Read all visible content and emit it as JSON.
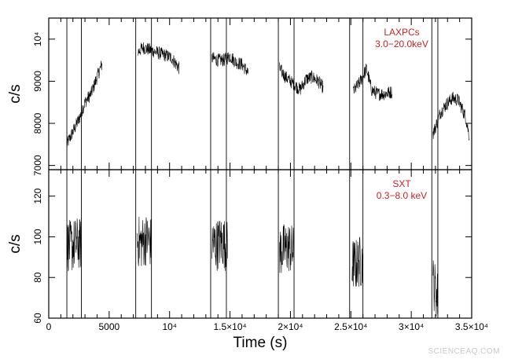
{
  "chart_data": {
    "type": "line",
    "xlabel": "Time (s)",
    "xlim": [
      0,
      35000
    ],
    "x_ticks": [
      {
        "value": 0,
        "label": "0"
      },
      {
        "value": 5000,
        "label": "5000"
      },
      {
        "value": 10000,
        "label": "10⁴"
      },
      {
        "value": 15000,
        "label": "1.5×10⁴"
      },
      {
        "value": 20000,
        "label": "2×10⁴"
      },
      {
        "value": 25000,
        "label": "2.5×10⁴"
      },
      {
        "value": 30000,
        "label": "3×10⁴"
      },
      {
        "value": 35000,
        "label": "3.5×10⁴"
      }
    ],
    "panels": [
      {
        "name": "LAXPC",
        "label_lines": [
          "LAXPCs",
          "3.0−20.0keV"
        ],
        "ylabel": "c/s",
        "ylim": [
          6900,
          10500
        ],
        "y_ticks": [
          {
            "value": 7000,
            "label": "7000"
          },
          {
            "value": 8000,
            "label": "8000"
          },
          {
            "value": 9000,
            "label": "9000"
          },
          {
            "value": 10000,
            "label": "10⁴"
          }
        ],
        "segments": [
          {
            "x": [
              1500,
              2000,
              2500,
              3000,
              3500,
              4000,
              4400
            ],
            "y": [
              7500,
              7800,
              8100,
              8500,
              8700,
              9100,
              9400
            ]
          },
          {
            "x": [
              7400,
              7800,
              8300,
              8800,
              9300,
              9800,
              10200,
              10800
            ],
            "y": [
              9700,
              9800,
              9750,
              9700,
              9650,
              9600,
              9550,
              9300
            ]
          },
          {
            "x": [
              13500,
              14000,
              14500,
              15000,
              15500,
              16000,
              16500
            ],
            "y": [
              9550,
              9500,
              9500,
              9600,
              9450,
              9400,
              9200
            ]
          },
          {
            "x": [
              19100,
              19600,
              20200,
              20800,
              21300,
              21800,
              22300,
              22700
            ],
            "y": [
              9300,
              9100,
              8950,
              8800,
              9050,
              9100,
              9000,
              8850
            ]
          },
          {
            "x": [
              25200,
              25800,
              26300,
              26700,
              27200,
              27800,
              28400
            ],
            "y": [
              8750,
              9000,
              9300,
              8800,
              8700,
              8700,
              8750
            ]
          },
          {
            "x": [
              31800,
              32400,
              32900,
              33400,
              33900,
              34500,
              34800
            ],
            "y": [
              7750,
              8250,
              8450,
              8600,
              8550,
              8150,
              7700
            ]
          }
        ],
        "noise_amplitude": 160
      },
      {
        "name": "SXT",
        "label_lines": [
          "SXT",
          "0.3−8.0 keV"
        ],
        "ylabel": "c/s",
        "ylim": [
          60,
          133
        ],
        "y_ticks": [
          {
            "value": 60,
            "label": "60"
          },
          {
            "value": 80,
            "label": "80"
          },
          {
            "value": 100,
            "label": "100"
          },
          {
            "value": 120,
            "label": "120"
          }
        ],
        "segments": [
          {
            "x": [
              1500,
              1900,
              2300,
              2700
            ],
            "y": [
              96,
              95,
              97,
              96
            ]
          },
          {
            "x": [
              7300,
              7700,
              8100,
              8500
            ],
            "y": [
              98,
              97,
              99,
              97
            ]
          },
          {
            "x": [
              13500,
              13900,
              14300,
              14800
            ],
            "y": [
              97,
              96,
              98,
              95
            ]
          },
          {
            "x": [
              19100,
              19500,
              19900,
              20300
            ],
            "y": [
              93,
              94,
              95,
              92
            ]
          },
          {
            "x": [
              25100,
              25400,
              25700,
              26000
            ],
            "y": [
              87,
              86,
              88,
              87
            ]
          },
          {
            "x": [
              31800,
              32000,
              32200
            ],
            "y": [
              78,
              74,
              70
            ]
          }
        ],
        "noise_amplitude": 13
      }
    ],
    "vertical_lines": [
      1500,
      2700,
      7200,
      8500,
      13400,
      14700,
      19000,
      20300,
      24900,
      26000,
      31700,
      32200
    ]
  },
  "watermark": "SCIENCEAQ.COM"
}
